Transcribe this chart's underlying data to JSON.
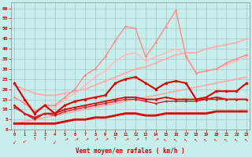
{
  "xlabel": "Vent moyen/en rafales ( km/h )",
  "xlim": [
    -0.3,
    23.3
  ],
  "ylim": [
    0,
    63
  ],
  "yticks": [
    0,
    5,
    10,
    15,
    20,
    25,
    30,
    35,
    40,
    45,
    50,
    55,
    60
  ],
  "xticks": [
    0,
    1,
    2,
    3,
    4,
    5,
    6,
    7,
    8,
    9,
    10,
    11,
    12,
    13,
    14,
    15,
    16,
    17,
    18,
    19,
    20,
    21,
    22,
    23
  ],
  "bg_color": "#c8eeec",
  "grid_color": "#a0c8c8",
  "series": [
    {
      "x": [
        0,
        1,
        2,
        3,
        4,
        5,
        6,
        7,
        8,
        9,
        10,
        11,
        12,
        13,
        14,
        15,
        16,
        17,
        18,
        19,
        20,
        21,
        22,
        23
      ],
      "y": [
        3,
        4,
        5,
        6,
        7,
        8,
        9,
        10,
        11,
        12,
        13,
        14,
        15,
        16,
        17,
        18,
        19,
        20,
        21,
        22,
        23,
        24,
        25,
        26
      ],
      "color": "#ffaaaa",
      "lw": 1.3,
      "marker": null,
      "ms": 0,
      "zorder": 2
    },
    {
      "x": [
        0,
        1,
        2,
        3,
        4,
        5,
        6,
        7,
        8,
        9,
        10,
        11,
        12,
        13,
        14,
        15,
        16,
        17,
        18,
        19,
        20,
        21,
        22,
        23
      ],
      "y": [
        22,
        20,
        18,
        17,
        17,
        18,
        19,
        20,
        22,
        24,
        26,
        28,
        30,
        31,
        33,
        35,
        37,
        38,
        38,
        40,
        41,
        42,
        43,
        45
      ],
      "color": "#ffaaaa",
      "lw": 1.2,
      "marker": "o",
      "ms": 2.0,
      "zorder": 2
    },
    {
      "x": [
        0,
        1,
        2,
        3,
        4,
        5,
        6,
        7,
        8,
        9,
        10,
        11,
        12,
        13,
        14,
        15,
        16,
        17,
        18,
        19,
        20,
        21,
        22,
        23
      ],
      "y": [
        16,
        13,
        9,
        12,
        12,
        16,
        20,
        27,
        30,
        36,
        44,
        51,
        50,
        36,
        43,
        51,
        59,
        36,
        28,
        29,
        30,
        33,
        35,
        37
      ],
      "color": "#ff8888",
      "lw": 1.0,
      "marker": "o",
      "ms": 2.0,
      "zorder": 3
    },
    {
      "x": [
        0,
        1,
        2,
        3,
        4,
        5,
        6,
        7,
        8,
        9,
        10,
        11,
        12,
        13,
        14,
        15,
        16,
        17,
        18,
        19,
        20,
        21,
        22,
        23
      ],
      "y": [
        23,
        15,
        9,
        12,
        11,
        15,
        18,
        22,
        26,
        29,
        34,
        37,
        38,
        34,
        36,
        38,
        40,
        37,
        28,
        29,
        30,
        32,
        34,
        36
      ],
      "color": "#ffbbbb",
      "lw": 1.1,
      "marker": "o",
      "ms": 2.0,
      "zorder": 2
    },
    {
      "x": [
        0,
        1,
        2,
        3,
        4,
        5,
        6,
        7,
        8,
        9,
        10,
        11,
        12,
        13,
        14,
        15,
        16,
        17,
        18,
        19,
        20,
        21,
        22,
        23
      ],
      "y": [
        23,
        15,
        8,
        12,
        8,
        12,
        14,
        15,
        16,
        17,
        23,
        25,
        26,
        23,
        20,
        23,
        24,
        23,
        15,
        16,
        19,
        19,
        19,
        23
      ],
      "color": "#dd0000",
      "lw": 1.5,
      "marker": "o",
      "ms": 2.5,
      "zorder": 4
    },
    {
      "x": [
        0,
        1,
        2,
        3,
        4,
        5,
        6,
        7,
        8,
        9,
        10,
        11,
        12,
        13,
        14,
        15,
        16,
        17,
        18,
        19,
        20,
        21,
        22,
        23
      ],
      "y": [
        12,
        8,
        6,
        8,
        8,
        10,
        11,
        12,
        13,
        14,
        15,
        16,
        16,
        15,
        15,
        16,
        15,
        15,
        15,
        15,
        16,
        15,
        15,
        15
      ],
      "color": "#dd0000",
      "lw": 1.3,
      "marker": "o",
      "ms": 2.0,
      "zorder": 4
    },
    {
      "x": [
        0,
        1,
        2,
        3,
        4,
        5,
        6,
        7,
        8,
        9,
        10,
        11,
        12,
        13,
        14,
        15,
        16,
        17,
        18,
        19,
        20,
        21,
        22,
        23
      ],
      "y": [
        11,
        8,
        5,
        8,
        7,
        9,
        10,
        11,
        12,
        13,
        14,
        15,
        15,
        14,
        13,
        14,
        14,
        14,
        14,
        15,
        15,
        15,
        15,
        15
      ],
      "color": "#cc2222",
      "lw": 1.0,
      "marker": "o",
      "ms": 1.8,
      "zorder": 4
    },
    {
      "x": [
        0,
        1,
        2,
        3,
        4,
        5,
        6,
        7,
        8,
        9,
        10,
        11,
        12,
        13,
        14,
        15,
        16,
        17,
        18,
        19,
        20,
        21,
        22,
        23
      ],
      "y": [
        3,
        3,
        3,
        3,
        3,
        4,
        5,
        5,
        6,
        6,
        7,
        8,
        8,
        7,
        7,
        8,
        8,
        8,
        8,
        8,
        9,
        9,
        9,
        9
      ],
      "color": "#dd0000",
      "lw": 2.0,
      "marker": null,
      "ms": 0,
      "zorder": 4
    }
  ],
  "wind_arrow_chars": [
    "\\",
    "\\",
    "|",
    "|",
    "\\",
    "/",
    "/",
    "/",
    "/",
    "/",
    "|",
    "/",
    "/",
    "|",
    "/",
    "/",
    "/",
    "/",
    "/",
    "/",
    "/",
    "/",
    "/",
    "/"
  ],
  "arrows_x": [
    0,
    1,
    2,
    3,
    4,
    5,
    6,
    7,
    8,
    9,
    10,
    11,
    12,
    13,
    14,
    15,
    16,
    17,
    18,
    19,
    20,
    21,
    22,
    23
  ],
  "arrows_rot": [
    135,
    120,
    0,
    0,
    135,
    300,
    300,
    300,
    300,
    300,
    0,
    300,
    300,
    0,
    300,
    45,
    45,
    45,
    45,
    45,
    45,
    45,
    45,
    45
  ]
}
